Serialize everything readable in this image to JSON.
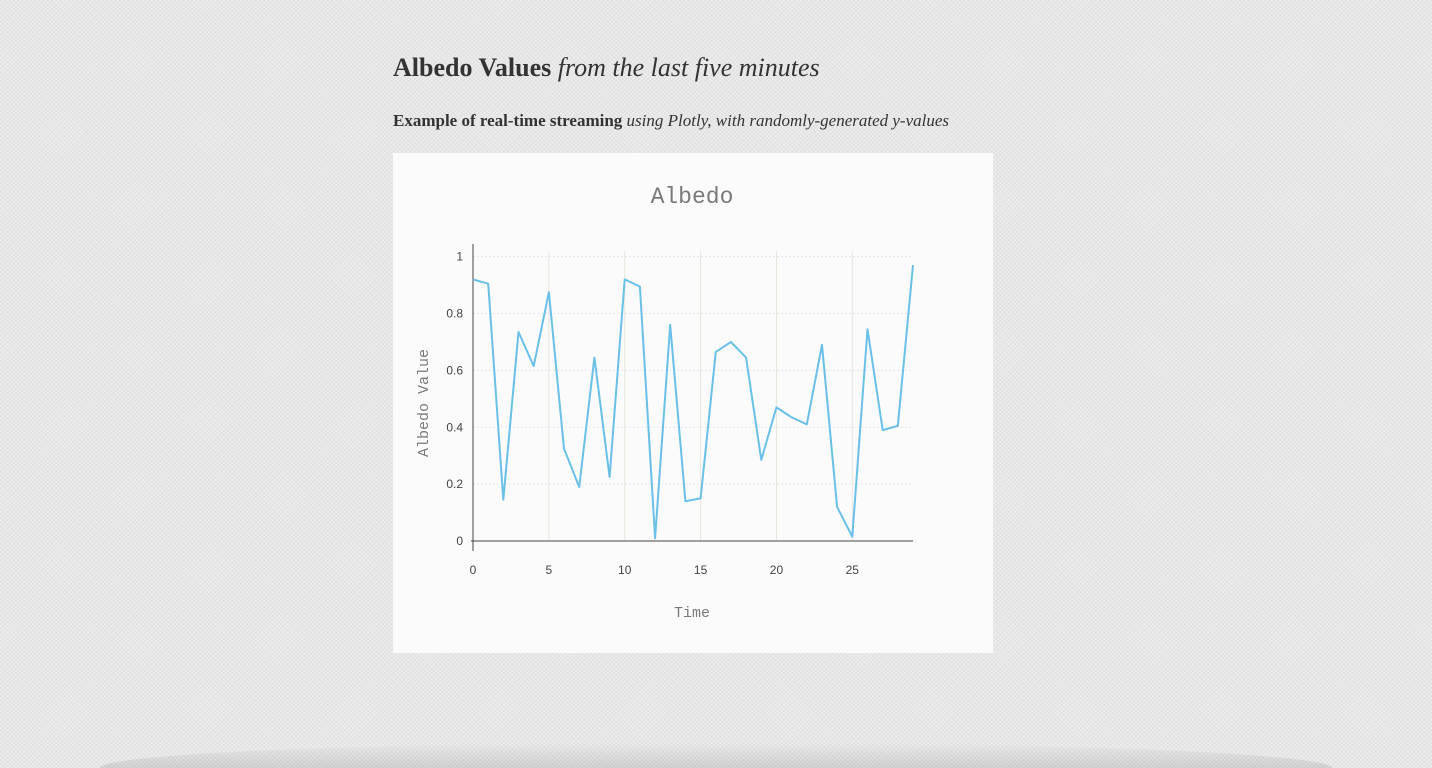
{
  "header": {
    "title_bold": "Albedo Values",
    "title_italic": "from the last five minutes",
    "subtitle_bold": "Example of real-time streaming",
    "subtitle_italic": "using Plotly, with randomly-generated y-values"
  },
  "chart_data": {
    "type": "line",
    "title": "Albedo",
    "xlabel": "Time",
    "ylabel": "Albedo Value",
    "xlim": [
      0,
      29
    ],
    "ylim": [
      0,
      1.02
    ],
    "xticks": [
      0,
      5,
      10,
      15,
      20,
      25
    ],
    "yticks": [
      0,
      0.2,
      0.4,
      0.6,
      0.8,
      1
    ],
    "ytick_labels": [
      "0",
      "0.2",
      "0.4",
      "0.6",
      "0.8",
      "1"
    ],
    "grid": true,
    "line_color": "#6ac0e8",
    "series": [
      {
        "x": [
          0,
          1,
          2,
          3,
          4,
          5,
          6,
          7,
          8,
          9,
          10,
          11,
          12,
          13,
          14,
          15,
          16,
          17,
          18,
          19,
          20,
          21,
          22,
          23,
          24,
          25,
          26,
          27,
          28,
          29
        ],
        "values": [
          0.92,
          0.905,
          0.145,
          0.735,
          0.615,
          0.875,
          0.325,
          0.19,
          0.645,
          0.225,
          0.92,
          0.895,
          0.01,
          0.76,
          0.14,
          0.15,
          0.665,
          0.7,
          0.645,
          0.285,
          0.47,
          0.435,
          0.41,
          0.69,
          0.12,
          0.015,
          0.745,
          0.39,
          0.405,
          0.97
        ]
      }
    ]
  }
}
